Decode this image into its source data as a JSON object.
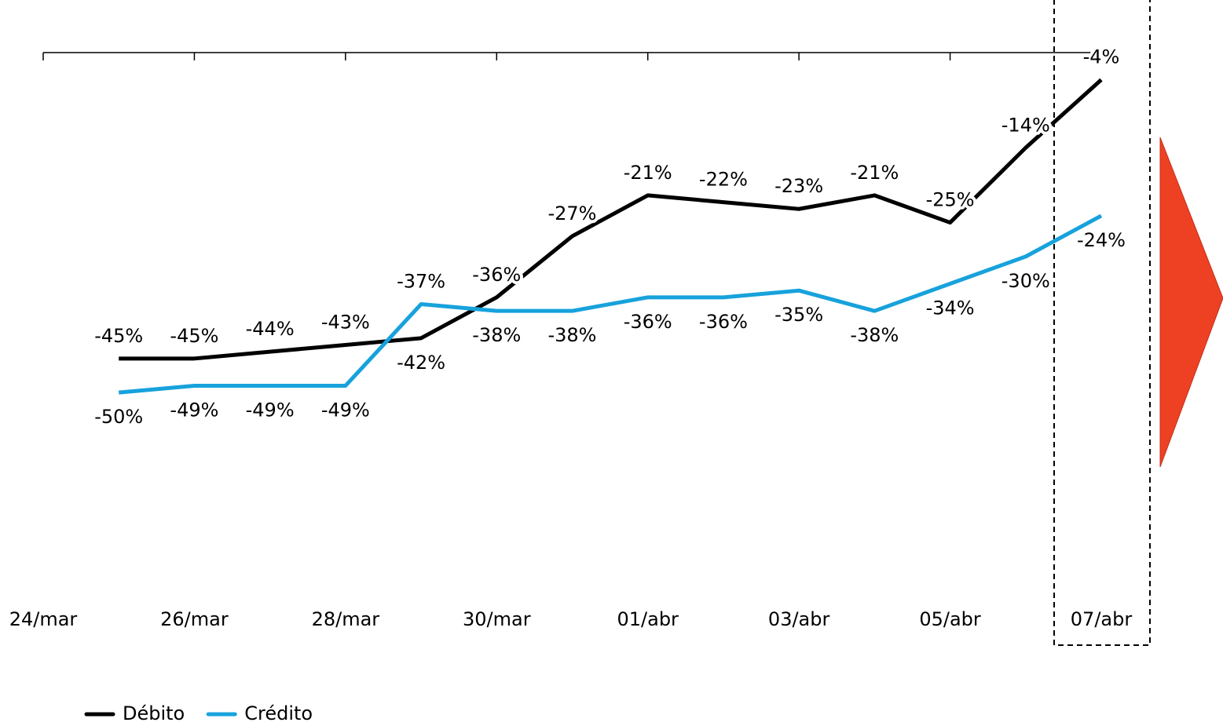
{
  "chart_data": {
    "type": "line",
    "categories": [
      "24/mar",
      null,
      "26/mar",
      null,
      "28/mar",
      null,
      "30/mar",
      null,
      "01/abr",
      null,
      "03/abr",
      null,
      "05/abr",
      null,
      "07/abr"
    ],
    "series": [
      {
        "name": "Débito",
        "color": "#000000",
        "values": [
          null,
          -45,
          -45,
          -44,
          -43,
          -42,
          -36,
          -27,
          -21,
          -22,
          -23,
          -21,
          -25,
          -14,
          -4
        ],
        "value_labels": [
          null,
          "-45%",
          "-45%",
          "-44%",
          "-43%",
          "-42%",
          "-36%",
          "-27%",
          "-21%",
          "-22%",
          "-23%",
          "-21%",
          "-25%",
          "-14%",
          "-4%"
        ]
      },
      {
        "name": "Crédito",
        "color": "#17a2dc",
        "values": [
          null,
          -50,
          -49,
          -49,
          -49,
          -37,
          -38,
          -38,
          -36,
          -36,
          -35,
          -38,
          -34,
          -30,
          -24
        ],
        "value_labels": [
          null,
          "-50%",
          "-49%",
          "-49%",
          "-49%",
          "-37%",
          "-38%",
          "-38%",
          "-36%",
          "-36%",
          "-35%",
          "-38%",
          "-34%",
          "-30%",
          "-24%"
        ]
      }
    ],
    "ylim": [
      -80,
      0
    ],
    "legend": "bottom-left"
  }
}
